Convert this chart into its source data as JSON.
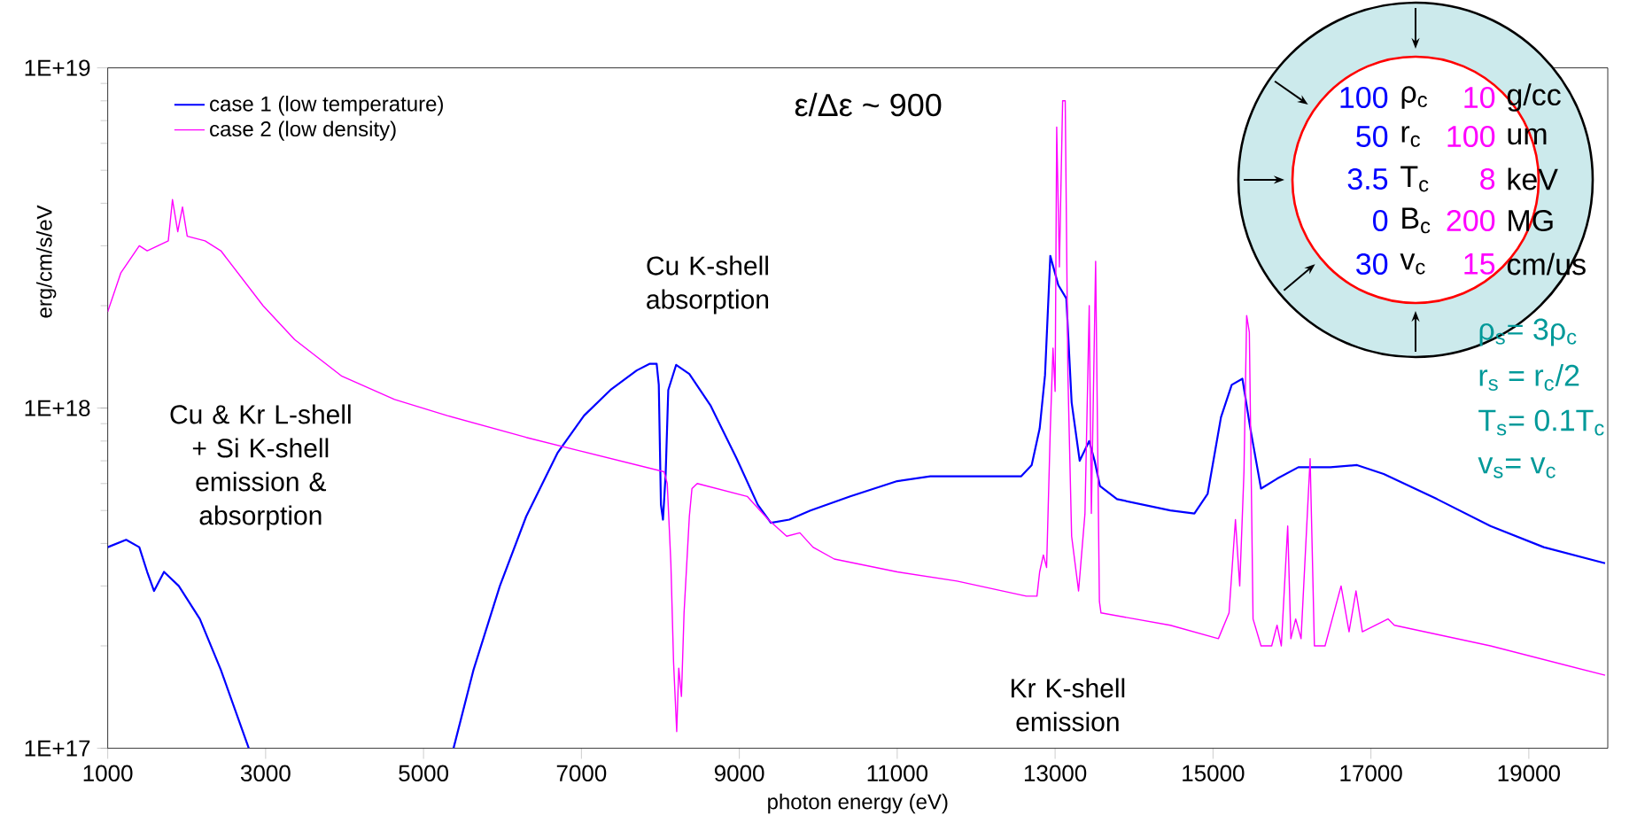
{
  "chart_data": {
    "type": "line",
    "xlabel": "photon energy (eV)",
    "ylabel": "erg/cm/s/eV",
    "xlim": [
      1000,
      20000
    ],
    "xticks": [
      1000,
      3000,
      5000,
      7000,
      9000,
      11000,
      13000,
      15000,
      17000,
      19000
    ],
    "ylim": [
      1e+17,
      1e+19
    ],
    "yticks": [
      {
        "value": 1e+17,
        "label": "1E+17"
      },
      {
        "value": 1e+18,
        "label": "1E+18"
      },
      {
        "value": 1e+19,
        "label": "1E+19"
      }
    ],
    "log": "y",
    "grid": false,
    "legend": "top left",
    "marker": "none",
    "line_style": "solid",
    "series": [
      {
        "name": "case 1 (low temperature)",
        "color": "#0000ff",
        "x": [
          1000,
          1233,
          1400,
          1500,
          1587,
          1713,
          1900,
          2167,
          2433,
          2787,
          4000,
          5380,
          5633,
          5967,
          6300,
          6700,
          7033,
          7367,
          7700,
          7867,
          7953,
          7980,
          8007,
          8033,
          8067,
          8100,
          8200,
          8367,
          8633,
          8967,
          9233,
          9400,
          9633,
          9900,
          10405,
          11000,
          11419,
          11959,
          12568,
          12703,
          12804,
          12872,
          12939,
          13040,
          13142,
          13209,
          13311,
          13432,
          13500,
          13568,
          13784,
          14459,
          14764,
          14932,
          15101,
          15237,
          15372,
          15473,
          15608,
          15811,
          16081,
          16487,
          16824,
          17162,
          17838,
          18514,
          19189,
          19966
        ],
        "values": [
          3.9e+17,
          4.1e+17,
          3.9e+17,
          3.3e+17,
          2.9e+17,
          3.3e+17,
          3e+17,
          2.4e+17,
          1.7e+17,
          1e+17,
          null,
          1e+17,
          1.7e+17,
          3e+17,
          4.8e+17,
          7.4e+17,
          9.5e+17,
          1.13e+18,
          1.29e+18,
          1.35e+18,
          1.35e+18,
          1.17e+18,
          5.2e+17,
          4.7e+17,
          6.4e+17,
          1.13e+18,
          1.34e+18,
          1.26e+18,
          1.02e+18,
          7.1e+17,
          5.2e+17,
          4.6e+17,
          4.7e+17,
          5e+17,
          5.5e+17,
          6.1e+17,
          6.3e+17,
          6.3e+17,
          6.3e+17,
          6.8e+17,
          8.7e+17,
          1.25e+18,
          2.8e+18,
          2.3e+18,
          2.1e+18,
          1.04e+18,
          7e+17,
          8e+17,
          7e+17,
          5.9e+17,
          5.4e+17,
          5e+17,
          4.9e+17,
          5.6e+17,
          9.4e+17,
          1.17e+18,
          1.22e+18,
          8.7e+17,
          5.8e+17,
          6.2e+17,
          6.7e+17,
          6.7e+17,
          6.8e+17,
          6.4e+17,
          5.4e+17,
          4.5e+17,
          3.9e+17,
          3.5e+17
        ]
      },
      {
        "name": "case 2 (low density)",
        "color": "#ff00ff",
        "x": [
          1000,
          1167,
          1400,
          1500,
          1767,
          1820,
          1887,
          1947,
          2007,
          2233,
          2433,
          2967,
          3367,
          3967,
          4633,
          5300,
          6300,
          6967,
          8047,
          8087,
          8133,
          8167,
          8207,
          8233,
          8267,
          8300,
          8367,
          8400,
          8467,
          9100,
          9367,
          9600,
          9767,
          9933,
          10203,
          11000,
          11757,
          12635,
          12770,
          12804,
          12851,
          12892,
          12939,
          12973,
          13000,
          13020,
          13054,
          13095,
          13128,
          13162,
          13209,
          13297,
          13378,
          13432,
          13459,
          13513,
          13561,
          13581,
          14459,
          15068,
          15203,
          15284,
          15338,
          15392,
          15426,
          15460,
          15507,
          15608,
          15743,
          15811,
          15865,
          15946,
          15986,
          16047,
          16115,
          16230,
          16284,
          16419,
          16622,
          16723,
          16811,
          16892,
          17216,
          17297,
          18514,
          19966
        ],
        "values": [
          1.92e+18,
          2.5e+18,
          3e+18,
          2.9e+18,
          3.1e+18,
          4.1e+18,
          3.3e+18,
          3.9e+18,
          3.2e+18,
          3.1e+18,
          2.9e+18,
          2e+18,
          1.59e+18,
          1.24e+18,
          1.06e+18,
          9.5e+17,
          8.2e+17,
          7.5e+17,
          6.5e+17,
          6e+17,
          3.5e+17,
          1.79e+17,
          1.12e+17,
          1.72e+17,
          1.42e+17,
          2.5e+17,
          4.8e+17,
          5.8e+17,
          6e+17,
          5.5e+17,
          4.7e+17,
          4.2e+17,
          4.3e+17,
          3.9e+17,
          3.6e+17,
          3.3e+17,
          3.1e+17,
          2.8e+17,
          2.8e+17,
          3.3e+17,
          3.7e+17,
          3.4e+17,
          8.7e+17,
          1.5e+18,
          1.12e+18,
          6.7e+18,
          2.6e+18,
          8e+18,
          8e+18,
          1.25e+18,
          4.2e+17,
          2.9e+17,
          4.9e+17,
          2e+18,
          4.9e+17,
          2.7e+18,
          2.7e+17,
          2.5e+17,
          2.3e+17,
          2.1e+17,
          2.5e+17,
          4.7e+17,
          3e+17,
          6.5e+17,
          1.87e+18,
          1.67e+18,
          2.4e+17,
          2e+17,
          2e+17,
          2.3e+17,
          2e+17,
          4.5e+17,
          2.1e+17,
          2.4e+17,
          2.1e+17,
          7.1e+17,
          2e+17,
          2e+17,
          3e+17,
          2.2e+17,
          2.9e+17,
          2.2e+17,
          2.4e+17,
          2.3e+17,
          2e+17,
          1.64e+17
        ]
      }
    ],
    "annotations": [
      "ε/Δε ~ 900",
      "100",
      "ρ$_{c}$",
      "10",
      "g/cc",
      "50",
      "r$_{c}$",
      "100",
      "um",
      "3.5",
      "T$_{c}$",
      "8",
      "keV",
      "0",
      "B$_{c}$",
      "200",
      "MG",
      "30",
      "v$_{c}$",
      "15",
      "cm/us",
      "ρ$_{s}$= 3ρ$_{c}$",
      "r$_{s}$ = r$_{c}$/2",
      "T$_{s}$= 0.1T$_{c}$",
      "v$_{s}$= v$_{c}$",
      "Cu & Kr L-shell + Si K-shell emission & absorption",
      "Cu K-shell absorption",
      "Kr K-shell emission"
    ]
  }
}
